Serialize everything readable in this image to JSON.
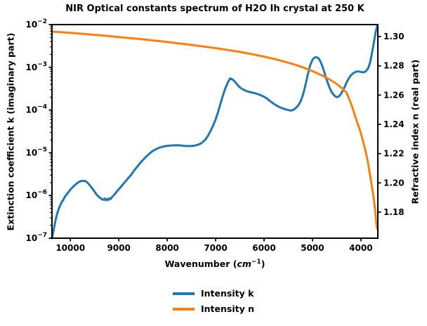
{
  "chart_data": {
    "type": "line",
    "title": "NIR Optical constants spectrum of H2O Ih crystal at 250 K",
    "x_axis": {
      "label_prefix": "Wavenumber (",
      "label_unit": "cm",
      "label_sup": "−1",
      "label_suffix": ")",
      "ticks": [
        10000,
        9000,
        8000,
        7000,
        6000,
        5000,
        4000
      ],
      "range": [
        10380,
        3650
      ],
      "inverted": true,
      "grid": false
    },
    "y_left": {
      "label": "Extinction coefficient k (imaginary part)",
      "scale": "log",
      "tick_exponents": [
        -2,
        -3,
        -4,
        -5,
        -6,
        -7
      ],
      "range": [
        1e-07,
        0.01
      ]
    },
    "y_right": {
      "label": "Refractive index n (real part)",
      "scale": "linear",
      "ticks": [
        "1.30",
        "1.28",
        "1.26",
        "1.24",
        "1.22",
        "1.20",
        "1.18"
      ],
      "tick_values": [
        1.3,
        1.28,
        1.26,
        1.24,
        1.22,
        1.2,
        1.18
      ],
      "range": [
        1.1622,
        1.3082
      ]
    },
    "legend": {
      "entries": [
        "Intensity k",
        "Intensity n"
      ],
      "position": "lower center outside"
    },
    "series": [
      {
        "name": "Intensity k",
        "axis": "left",
        "color": "#1f77b4",
        "points": [
          [
            10380,
            1e-07
          ],
          [
            10360,
            1.3e-07
          ],
          [
            10335,
            1.8e-07
          ],
          [
            10310,
            2.5e-07
          ],
          [
            10285,
            3.3e-07
          ],
          [
            10260,
            4.2e-07
          ],
          [
            10230,
            5.2e-07
          ],
          [
            10200,
            6.2e-07
          ],
          [
            10170,
            7.3e-07
          ],
          [
            10150,
            7.7e-07
          ],
          [
            10130,
            8.6e-07
          ],
          [
            10100,
            9.8e-07
          ],
          [
            10060,
            1.12e-06
          ],
          [
            10020,
            1.28e-06
          ],
          [
            9980,
            1.45e-06
          ],
          [
            9940,
            1.62e-06
          ],
          [
            9900,
            1.78e-06
          ],
          [
            9860,
            1.94e-06
          ],
          [
            9820,
            2.08e-06
          ],
          [
            9780,
            2.17e-06
          ],
          [
            9740,
            2.2e-06
          ],
          [
            9700,
            2.18e-06
          ],
          [
            9660,
            2.05e-06
          ],
          [
            9620,
            1.85e-06
          ],
          [
            9580,
            1.62e-06
          ],
          [
            9540,
            1.42e-06
          ],
          [
            9500,
            1.22e-06
          ],
          [
            9460,
            1.06e-06
          ],
          [
            9420,
            9.4e-07
          ],
          [
            9380,
            8.7e-07
          ],
          [
            9350,
            8.2e-07
          ],
          [
            9320,
            7.9e-07
          ],
          [
            9295,
            8.5e-07
          ],
          [
            9270,
            7.7e-07
          ],
          [
            9245,
            8.3e-07
          ],
          [
            9220,
            7.8e-07
          ],
          [
            9195,
            8.6e-07
          ],
          [
            9170,
            8.2e-07
          ],
          [
            9145,
            9e-07
          ],
          [
            9120,
            9.7e-07
          ],
          [
            9090,
            1.05e-06
          ],
          [
            9050,
            1.2e-06
          ],
          [
            9000,
            1.4e-06
          ],
          [
            8950,
            1.62e-06
          ],
          [
            8900,
            1.9e-06
          ],
          [
            8850,
            2.2e-06
          ],
          [
            8800,
            2.6e-06
          ],
          [
            8750,
            3e-06
          ],
          [
            8700,
            3.6e-06
          ],
          [
            8650,
            4.3e-06
          ],
          [
            8600,
            5e-06
          ],
          [
            8550,
            5.9e-06
          ],
          [
            8500,
            6.8e-06
          ],
          [
            8450,
            7.8e-06
          ],
          [
            8400,
            8.8e-06
          ],
          [
            8350,
            9.9e-06
          ],
          [
            8300,
            1.1e-05
          ],
          [
            8250,
            1.18e-05
          ],
          [
            8200,
            1.26e-05
          ],
          [
            8150,
            1.33e-05
          ],
          [
            8100,
            1.38e-05
          ],
          [
            8050,
            1.42e-05
          ],
          [
            8000,
            1.45e-05
          ],
          [
            7950,
            1.47e-05
          ],
          [
            7900,
            1.48e-05
          ],
          [
            7850,
            1.49e-05
          ],
          [
            7800,
            1.5e-05
          ],
          [
            7750,
            1.49e-05
          ],
          [
            7700,
            1.47e-05
          ],
          [
            7650,
            1.45e-05
          ],
          [
            7600,
            1.44e-05
          ],
          [
            7550,
            1.43e-05
          ],
          [
            7500,
            1.44e-05
          ],
          [
            7450,
            1.46e-05
          ],
          [
            7400,
            1.5e-05
          ],
          [
            7350,
            1.56e-05
          ],
          [
            7300,
            1.66e-05
          ],
          [
            7250,
            1.85e-05
          ],
          [
            7200,
            2.1e-05
          ],
          [
            7150,
            2.6e-05
          ],
          [
            7100,
            3.3e-05
          ],
          [
            7050,
            4.4e-05
          ],
          [
            7000,
            6e-05
          ],
          [
            6950,
            9e-05
          ],
          [
            6900,
            0.00014
          ],
          [
            6850,
            0.00022
          ],
          [
            6800,
            0.00032
          ],
          [
            6750,
            0.00044
          ],
          [
            6700,
            0.00055
          ],
          [
            6650,
            0.00052
          ],
          [
            6600,
            0.00046
          ],
          [
            6550,
            0.00039
          ],
          [
            6500,
            0.00034
          ],
          [
            6450,
            0.00031
          ],
          [
            6400,
            0.00029
          ],
          [
            6350,
            0.000275
          ],
          [
            6300,
            0.000265
          ],
          [
            6250,
            0.000258
          ],
          [
            6200,
            0.00025
          ],
          [
            6150,
            0.00024
          ],
          [
            6100,
            0.00023
          ],
          [
            6050,
            0.000218
          ],
          [
            6000,
            0.000205
          ],
          [
            5950,
            0.000188
          ],
          [
            5900,
            0.00017
          ],
          [
            5850,
            0.000155
          ],
          [
            5800,
            0.00014
          ],
          [
            5750,
            0.000129
          ],
          [
            5700,
            0.00012
          ],
          [
            5650,
            0.000113
          ],
          [
            5600,
            0.000108
          ],
          [
            5550,
            0.000103
          ],
          [
            5500,
            0.0001
          ],
          [
            5450,
            9.7e-05
          ],
          [
            5400,
            0.0001
          ],
          [
            5350,
            0.00011
          ],
          [
            5300,
            0.000125
          ],
          [
            5250,
            0.000155
          ],
          [
            5200,
            0.00022
          ],
          [
            5150,
            0.00036
          ],
          [
            5100,
            0.00065
          ],
          [
            5050,
            0.0011
          ],
          [
            5000,
            0.0015
          ],
          [
            4960,
            0.00168
          ],
          [
            4920,
            0.00173
          ],
          [
            4880,
            0.00165
          ],
          [
            4840,
            0.0014
          ],
          [
            4800,
            0.0011
          ],
          [
            4760,
            0.0008
          ],
          [
            4720,
            0.00057
          ],
          [
            4680,
            0.00042
          ],
          [
            4640,
            0.00032
          ],
          [
            4600,
            0.00026
          ],
          [
            4560,
            0.000225
          ],
          [
            4520,
            0.000205
          ],
          [
            4490,
            0.0002
          ],
          [
            4450,
            0.00021
          ],
          [
            4400,
            0.00025
          ],
          [
            4350,
            0.00032
          ],
          [
            4300,
            0.00043
          ],
          [
            4250,
            0.00055
          ],
          [
            4200,
            0.00066
          ],
          [
            4150,
            0.00074
          ],
          [
            4100,
            0.00079
          ],
          [
            4050,
            0.0008
          ],
          [
            4000,
            0.00078
          ],
          [
            3950,
            0.00076
          ],
          [
            3900,
            0.0008
          ],
          [
            3850,
            0.00095
          ],
          [
            3810,
            0.0013
          ],
          [
            3780,
            0.0019
          ],
          [
            3750,
            0.0029
          ],
          [
            3720,
            0.0046
          ],
          [
            3695,
            0.0066
          ],
          [
            3675,
            0.0083
          ],
          [
            3658,
            0.0096
          ]
        ]
      },
      {
        "name": "Intensity n",
        "axis": "right",
        "color": "#ff7f0e",
        "points": [
          [
            10380,
            1.3034
          ],
          [
            10200,
            1.303
          ],
          [
            10000,
            1.3026
          ],
          [
            9750,
            1.3019
          ],
          [
            9500,
            1.3012
          ],
          [
            9250,
            1.3005
          ],
          [
            9000,
            1.2997
          ],
          [
            8750,
            1.2989
          ],
          [
            8500,
            1.2981
          ],
          [
            8250,
            1.2972
          ],
          [
            8000,
            1.2963
          ],
          [
            7750,
            1.2953
          ],
          [
            7500,
            1.2943
          ],
          [
            7250,
            1.2932
          ],
          [
            7000,
            1.2921
          ],
          [
            6750,
            1.2908
          ],
          [
            6500,
            1.2895
          ],
          [
            6250,
            1.288
          ],
          [
            6000,
            1.2863
          ],
          [
            5800,
            1.2848
          ],
          [
            5600,
            1.2831
          ],
          [
            5400,
            1.2812
          ],
          [
            5200,
            1.279
          ],
          [
            5000,
            1.2764
          ],
          [
            4800,
            1.2734
          ],
          [
            4700,
            1.2717
          ],
          [
            4600,
            1.2698
          ],
          [
            4500,
            1.2676
          ],
          [
            4400,
            1.265
          ],
          [
            4300,
            1.2618
          ],
          [
            4250,
            1.258
          ],
          [
            4200,
            1.2538
          ],
          [
            4150,
            1.249
          ],
          [
            4100,
            1.2436
          ],
          [
            4050,
            1.239
          ],
          [
            4000,
            1.234
          ],
          [
            3950,
            1.2278
          ],
          [
            3900,
            1.2212
          ],
          [
            3850,
            1.2135
          ],
          [
            3800,
            1.203
          ],
          [
            3750,
            1.193
          ],
          [
            3720,
            1.1855
          ],
          [
            3700,
            1.179
          ],
          [
            3685,
            1.1735
          ],
          [
            3670,
            1.17
          ],
          [
            3662,
            1.1685
          ]
        ]
      }
    ]
  }
}
